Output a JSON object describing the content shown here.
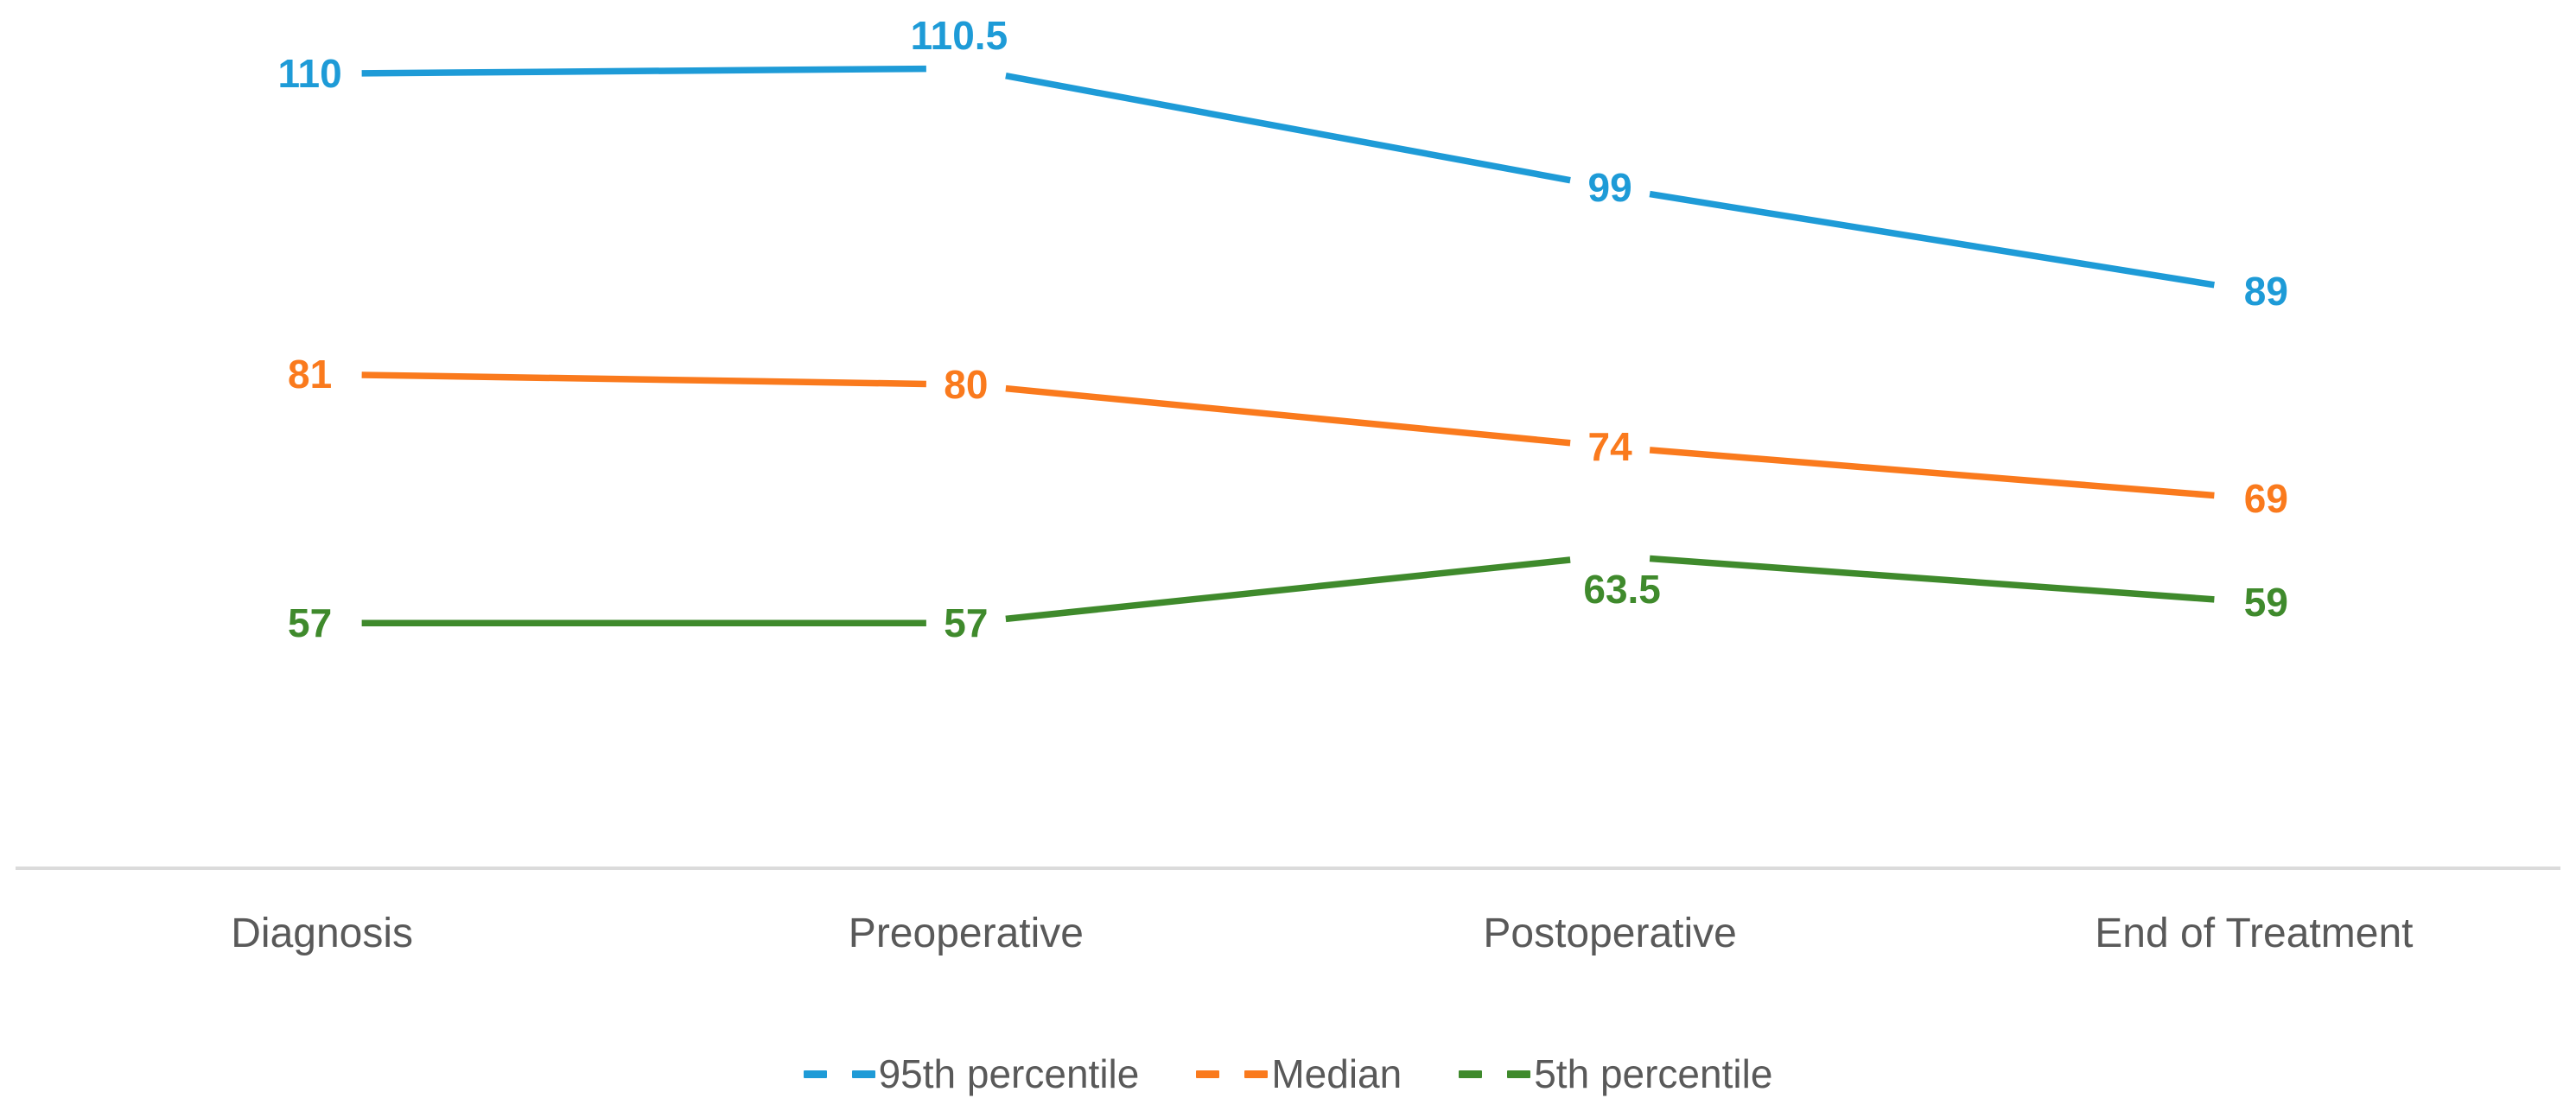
{
  "chart_data": {
    "type": "line",
    "title": "",
    "xlabel": "",
    "ylabel": "",
    "categories": [
      "Diagnosis",
      "Preoperative",
      "Postoperative",
      "End of Treatment"
    ],
    "series": [
      {
        "name": "95th percentile",
        "color": "#1E9BD7",
        "values": [
          110,
          110.5,
          99,
          89
        ],
        "data_labels": [
          "110",
          "110.5",
          "99",
          "89"
        ],
        "label_positions": [
          "left",
          "above",
          "inline",
          "right"
        ]
      },
      {
        "name": "Median",
        "color": "#FA7A1D",
        "values": [
          81,
          80,
          74,
          69
        ],
        "data_labels": [
          "81",
          "80",
          "74",
          "69"
        ],
        "label_positions": [
          "left",
          "inline",
          "inline",
          "right"
        ]
      },
      {
        "name": "5th percentile",
        "color": "#3F8A2C",
        "values": [
          57,
          57,
          63.5,
          59
        ],
        "data_labels": [
          "57",
          "57",
          "63.5",
          "59"
        ],
        "label_positions": [
          "left",
          "inline",
          "below",
          "right"
        ]
      }
    ],
    "ylim": [
      33.35,
      117.1
    ],
    "grid": false,
    "legend_position": "bottom",
    "legend_marker": "dashes",
    "axis_line_color": "#DBDBDB",
    "text_color": "#595959"
  }
}
